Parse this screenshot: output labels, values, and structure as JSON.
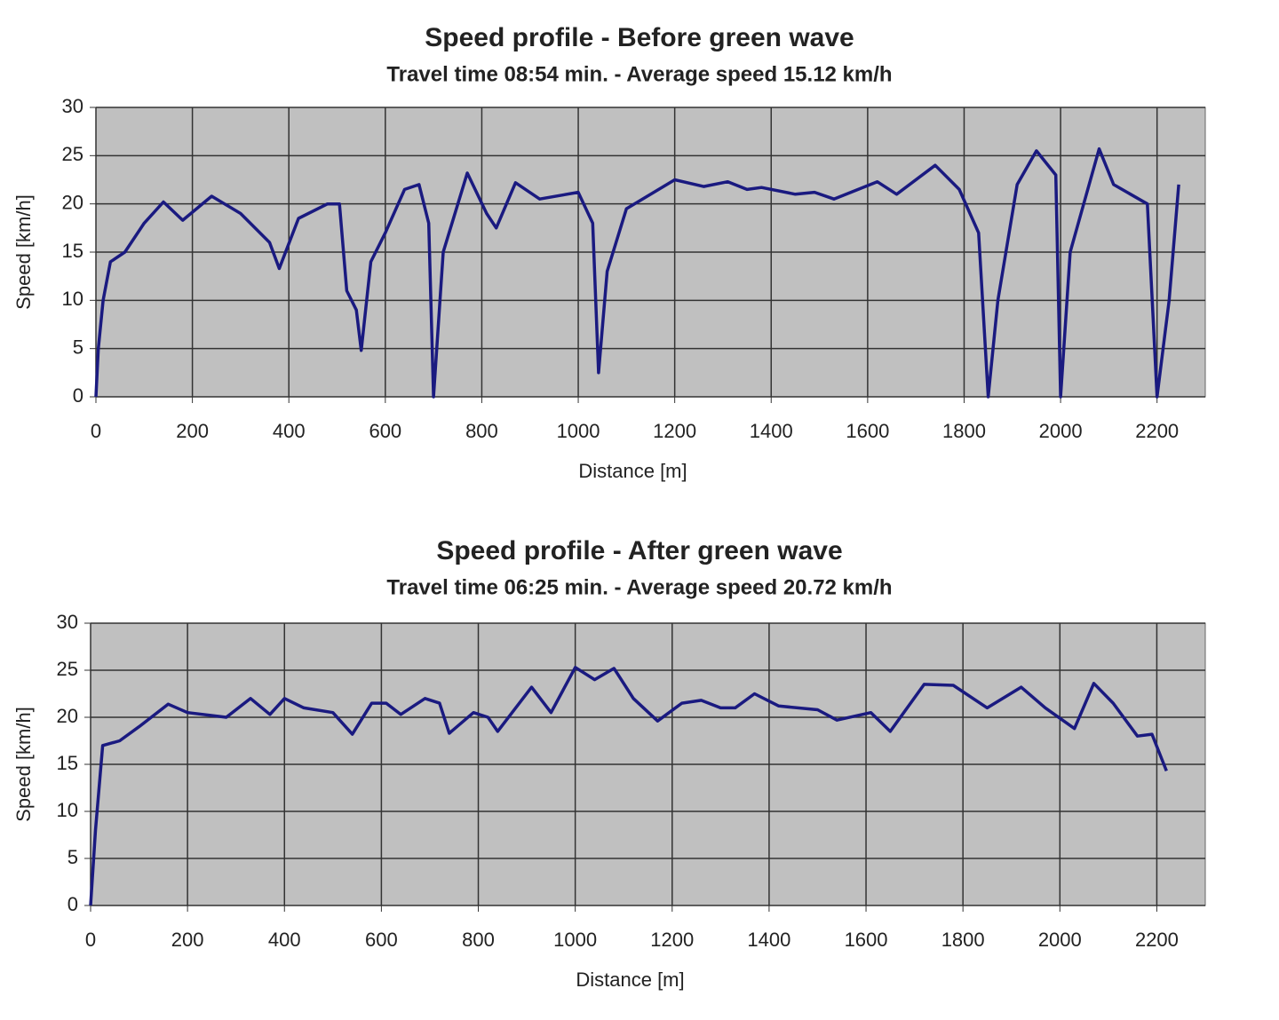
{
  "chart_data": [
    {
      "type": "line",
      "title": "Speed profile - Before green wave",
      "subtitle": "Travel time 08:54 min. - Average speed 15.12 km/h",
      "xlabel": "Distance [m]",
      "ylabel": "Speed [km/h]",
      "xlim": [
        0,
        2300
      ],
      "xticks": [
        0,
        200,
        400,
        600,
        800,
        1000,
        1200,
        1400,
        1600,
        1800,
        2000,
        2200
      ],
      "ylim": [
        0,
        30
      ],
      "yticks": [
        0,
        5,
        10,
        15,
        20,
        25,
        30
      ],
      "grid": true,
      "background": "#c0c0c0",
      "series": [
        {
          "color": "#1a1a80",
          "x": [
            0,
            5,
            15,
            30,
            60,
            100,
            140,
            180,
            240,
            300,
            360,
            380,
            420,
            480,
            505,
            520,
            540,
            550,
            570,
            600,
            640,
            670,
            690,
            700,
            720,
            770,
            810,
            830,
            870,
            920,
            1000,
            1030,
            1042,
            1060,
            1100,
            1200,
            1260,
            1310,
            1350,
            1380,
            1450,
            1490,
            1530,
            1620,
            1660,
            1740,
            1790,
            1830,
            1850,
            1870,
            1910,
            1950,
            1990,
            2000,
            2020,
            2080,
            2110,
            2180,
            2200,
            2225,
            2245
          ],
          "values": [
            0,
            5,
            10,
            14,
            15,
            18,
            20.2,
            18.3,
            20.8,
            19,
            16,
            13.3,
            18.5,
            20,
            20,
            11,
            9,
            4.8,
            14,
            17,
            21.5,
            22,
            18,
            0,
            15,
            23.2,
            19,
            17.5,
            22.2,
            20.5,
            21.2,
            18,
            2.5,
            13,
            19.5,
            22.5,
            21.8,
            22.3,
            21.5,
            21.7,
            21,
            21.2,
            20.5,
            22.3,
            21,
            24,
            21.5,
            17,
            0,
            10,
            22,
            25.5,
            23,
            0,
            15,
            25.7,
            22,
            20,
            0,
            10,
            22
          ]
        }
      ]
    },
    {
      "type": "line",
      "title": "Speed profile - After green wave",
      "subtitle": "Travel time 06:25 min. - Average speed 20.72 km/h",
      "xlabel": "Distance [m]",
      "ylabel": "Speed [km/h]",
      "xlim": [
        0,
        2300
      ],
      "xticks": [
        0,
        200,
        400,
        600,
        800,
        1000,
        1200,
        1400,
        1600,
        1800,
        2000,
        2200
      ],
      "ylim": [
        0,
        30
      ],
      "yticks": [
        0,
        5,
        10,
        15,
        20,
        25,
        30
      ],
      "grid": true,
      "background": "#c0c0c0",
      "series": [
        {
          "color": "#1a1a80",
          "x": [
            0,
            10,
            25,
            60,
            100,
            160,
            200,
            280,
            330,
            370,
            400,
            440,
            500,
            540,
            580,
            610,
            640,
            690,
            720,
            740,
            790,
            820,
            840,
            910,
            950,
            1000,
            1040,
            1080,
            1120,
            1170,
            1220,
            1260,
            1300,
            1330,
            1370,
            1420,
            1500,
            1540,
            1610,
            1650,
            1720,
            1780,
            1850,
            1920,
            1970,
            2030,
            2070,
            2110,
            2160,
            2190,
            2220
          ],
          "values": [
            0,
            8,
            17,
            17.5,
            19,
            21.4,
            20.5,
            20,
            22,
            20.3,
            22,
            21,
            20.5,
            18.2,
            21.5,
            21.5,
            20.3,
            22,
            21.5,
            18.3,
            20.5,
            20,
            18.5,
            23.2,
            20.5,
            25.3,
            24,
            25.2,
            22,
            19.6,
            21.5,
            21.8,
            21,
            21,
            22.5,
            21.2,
            20.8,
            19.7,
            20.5,
            18.5,
            23.5,
            23.4,
            21,
            23.2,
            21,
            18.8,
            23.6,
            21.5,
            18,
            18.2,
            14.3
          ]
        }
      ]
    }
  ]
}
